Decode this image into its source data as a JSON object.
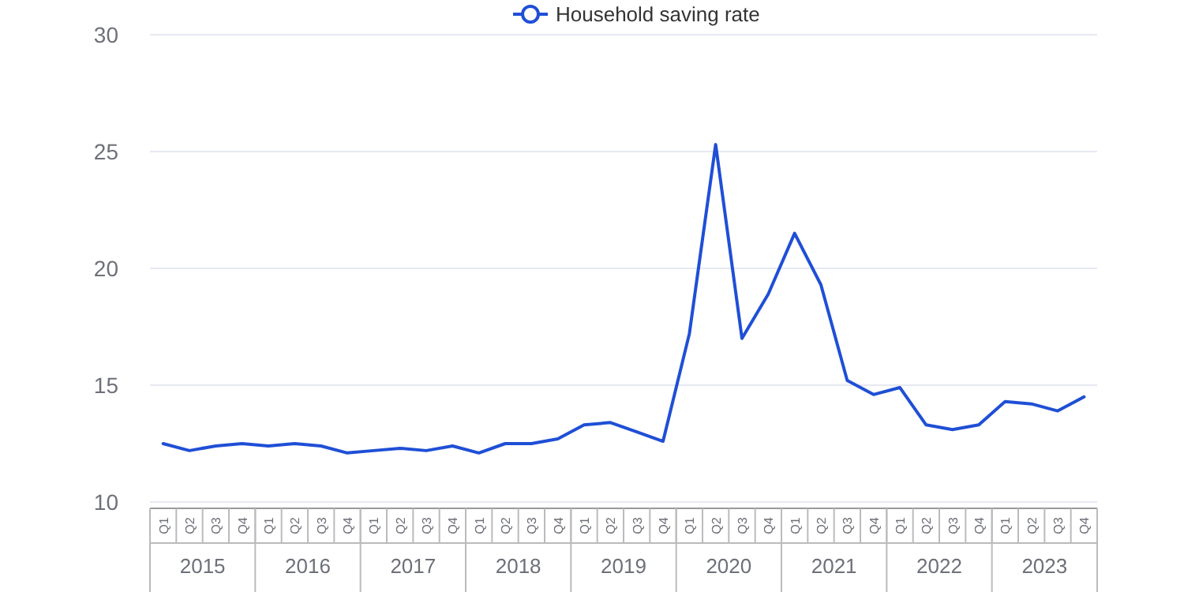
{
  "chart_data": {
    "type": "line",
    "categories": [
      "Q1",
      "Q2",
      "Q3",
      "Q4",
      "Q1",
      "Q2",
      "Q3",
      "Q4",
      "Q1",
      "Q2",
      "Q3",
      "Q4",
      "Q1",
      "Q2",
      "Q3",
      "Q4",
      "Q1",
      "Q2",
      "Q3",
      "Q4",
      "Q1",
      "Q2",
      "Q3",
      "Q4",
      "Q1",
      "Q2",
      "Q3",
      "Q4",
      "Q1",
      "Q2",
      "Q3",
      "Q4",
      "Q1",
      "Q2",
      "Q3",
      "Q4"
    ],
    "annotations": [
      "2015",
      "2016",
      "2017",
      "2018",
      "2019",
      "2020",
      "2021",
      "2022",
      "2023"
    ],
    "series": [
      {
        "name": "Household saving rate",
        "color": "#1f4fd6",
        "values": [
          12.5,
          12.2,
          12.4,
          12.5,
          12.4,
          12.5,
          12.4,
          12.1,
          12.2,
          12.3,
          12.2,
          12.4,
          12.1,
          12.5,
          12.5,
          12.7,
          13.3,
          13.4,
          13.0,
          12.6,
          17.2,
          25.3,
          17.0,
          18.9,
          21.5,
          19.3,
          15.2,
          14.6,
          14.9,
          13.3,
          13.1,
          13.3,
          14.3,
          14.2,
          13.9,
          14.5
        ]
      }
    ],
    "ylim": [
      10,
      30
    ],
    "yticks": [
      10,
      15,
      20,
      25,
      30
    ],
    "grid": "y",
    "legend": "top",
    "marker": "none",
    "line_style": "solid"
  }
}
